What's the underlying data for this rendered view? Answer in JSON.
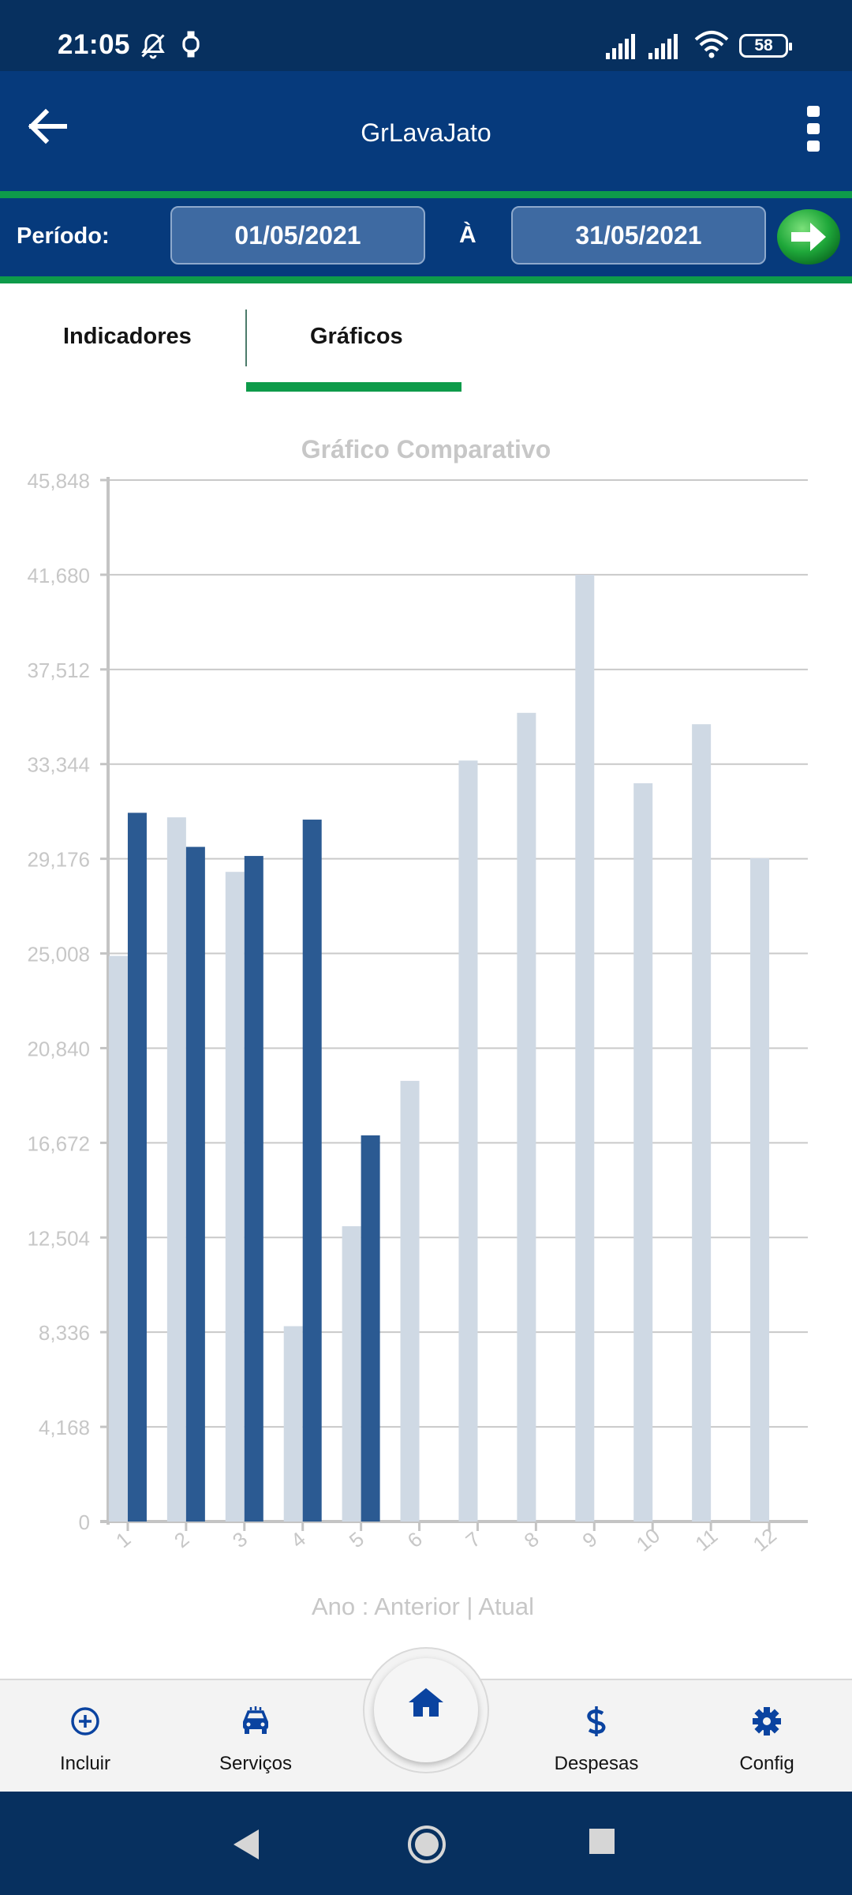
{
  "status_bar": {
    "time": "21:05",
    "battery": "58",
    "icons": [
      "bell-off-icon",
      "watch-icon",
      "signal-icon",
      "signal-icon",
      "wifi-icon",
      "battery-icon"
    ]
  },
  "app_bar": {
    "title": "GrLavaJato",
    "back_icon": "arrow-left-icon",
    "menu_icon": "more-vertical-icon"
  },
  "period": {
    "label": "Período:",
    "start": "01/05/2021",
    "separator": "À",
    "end": "31/05/2021",
    "go_icon": "arrow-right-circle-icon"
  },
  "tabs": [
    {
      "label": "Indicadores",
      "active": false
    },
    {
      "label": "Gráficos",
      "active": true
    }
  ],
  "chart_data": {
    "type": "bar",
    "title": "Gráfico Comparativo",
    "xlabel": "Ano : Anterior | Atual",
    "categories": [
      "1",
      "2",
      "3",
      "4",
      "5",
      "6",
      "7",
      "8",
      "9",
      "10",
      "11",
      "12"
    ],
    "y_ticks": [
      "45,848",
      "41,680",
      "37,512",
      "33,344",
      "29,176",
      "25,008",
      "20,840",
      "16,672",
      "12,504",
      "8,336",
      "4,168",
      "0"
    ],
    "ylim": [
      0,
      45848
    ],
    "series": [
      {
        "values": [
          24900,
          31000,
          28600,
          8600,
          13000,
          19400,
          33500,
          35600,
          41680,
          32500,
          35100,
          29200
        ],
        "color": "#cfd9e4"
      },
      {
        "values": [
          31200,
          29700,
          29300,
          30900,
          17000,
          null,
          null,
          null,
          null,
          null,
          null,
          null
        ],
        "color": "#2b5a92"
      }
    ],
    "grid": true,
    "colors": {
      "axis": "#c4c4c4",
      "grid": "#c9c9c9",
      "labels": "#c7c7c7"
    }
  },
  "bottom_nav": {
    "items": [
      {
        "label": "Incluir",
        "icon": "plus-circle-icon"
      },
      {
        "label": "Serviços",
        "icon": "car-icon"
      },
      {
        "label": "Despesas",
        "icon": "dollar-icon"
      },
      {
        "label": "Config",
        "icon": "gear-icon"
      }
    ],
    "home_icon": "home-icon"
  },
  "system_nav": {
    "icons": [
      "back-triangle-icon",
      "home-circle-icon",
      "recents-square-icon"
    ]
  },
  "colors": {
    "primary": "#063a7c",
    "accent": "#0e9b4a",
    "status_bar": "#07305f"
  }
}
